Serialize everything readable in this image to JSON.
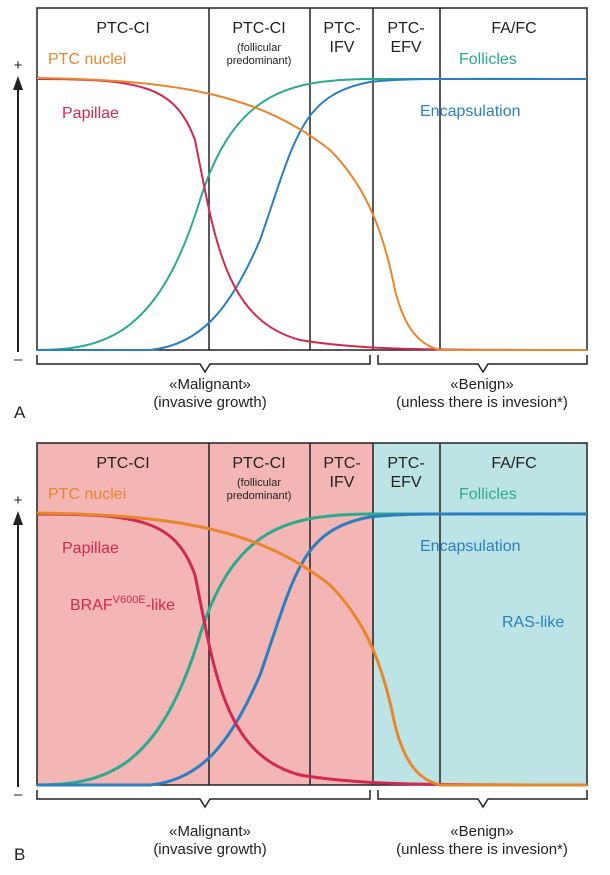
{
  "colors": {
    "ptc_nuclei": "#E8862E",
    "papillae": "#D02A50",
    "follicles": "#2BAA8E",
    "encapsulation": "#2B7FC0",
    "braf_like_text": "#D02A50",
    "ras_like_text": "#2B7FC0",
    "malignant_fill": "#F4B6B4",
    "benign_fill": "#BDE4E4"
  },
  "axis": {
    "plus": "+",
    "minus": "–"
  },
  "columns": [
    {
      "title_line1": "PTC-CI",
      "title_line2": "",
      "subtitle1": "",
      "subtitle2": ""
    },
    {
      "title_line1": "PTC-CI",
      "title_line2": "",
      "subtitle1": "(follicular",
      "subtitle2": "predominant)"
    },
    {
      "title_line1": "PTC-",
      "title_line2": "IFV",
      "subtitle1": "",
      "subtitle2": ""
    },
    {
      "title_line1": "PTC-",
      "title_line2": "EFV",
      "subtitle1": "",
      "subtitle2": ""
    },
    {
      "title_line1": "FA/FC",
      "title_line2": "",
      "subtitle1": "",
      "subtitle2": ""
    }
  ],
  "curve_labels": {
    "ptc_nuclei": "PTC nuclei",
    "papillae": "Papillae",
    "follicles": "Follicles",
    "encapsulation": "Encapsulation"
  },
  "panel_b_labels": {
    "braf_base": "BRAF",
    "braf_sup": "V600E",
    "braf_suffix": "-like",
    "ras_like": "RAS-like"
  },
  "categories": {
    "malignant_line1": "«Malignant»",
    "malignant_line2": "(invasive growth)",
    "benign_line1": "«Benign»",
    "benign_line2": "(unless there is invesion*)"
  },
  "panels": [
    {
      "letter": "A",
      "shaded": false
    },
    {
      "letter": "B",
      "shaded": true
    }
  ]
}
